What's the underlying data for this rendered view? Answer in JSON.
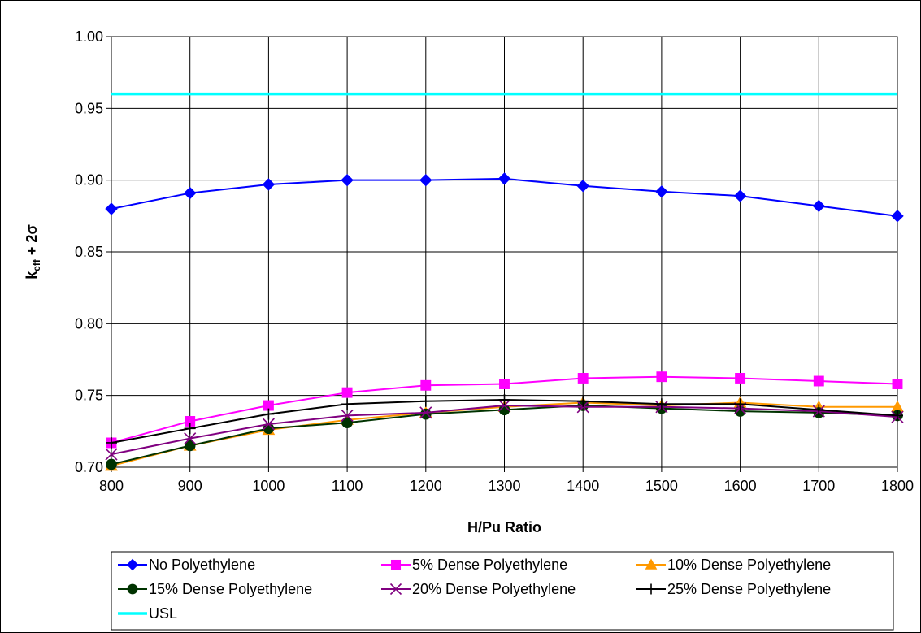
{
  "chart_data": {
    "type": "line",
    "title": "",
    "xlabel": "H/Pu Ratio",
    "ylabel": {
      "main": "k",
      "sub": "eff",
      "suffix": " + 2σ"
    },
    "xlim": [
      800,
      1800
    ],
    "ylim": [
      0.7,
      1.0
    ],
    "x_ticks": [
      800,
      900,
      1000,
      1100,
      1200,
      1300,
      1400,
      1500,
      1600,
      1700,
      1800
    ],
    "y_ticks": [
      0.7,
      0.75,
      0.8,
      0.85,
      0.9,
      0.95,
      1.0
    ],
    "grid": true,
    "legend_position": "bottom",
    "x": [
      800,
      900,
      1000,
      1100,
      1200,
      1300,
      1400,
      1500,
      1600,
      1700,
      1800
    ],
    "series": [
      {
        "name": "No Polyethylene",
        "color": "#0000FF",
        "marker": "diamond",
        "values": [
          0.88,
          0.891,
          0.897,
          0.9,
          0.9,
          0.901,
          0.896,
          0.892,
          0.889,
          0.882,
          0.875
        ]
      },
      {
        "name": "5% Dense Polyethylene",
        "color": "#FF00FF",
        "marker": "square",
        "values": [
          0.717,
          0.732,
          0.743,
          0.752,
          0.757,
          0.758,
          0.762,
          0.763,
          0.762,
          0.76,
          0.758
        ]
      },
      {
        "name": "10% Dense Polyethylene",
        "color": "#FF9900",
        "marker": "triangle",
        "values": [
          0.701,
          0.715,
          0.726,
          0.733,
          0.738,
          0.742,
          0.745,
          0.743,
          0.745,
          0.742,
          0.742
        ]
      },
      {
        "name": "15% Dense Polyethylene",
        "color": "#003300",
        "marker": "circle",
        "values": [
          0.702,
          0.715,
          0.727,
          0.731,
          0.737,
          0.74,
          0.743,
          0.741,
          0.739,
          0.738,
          0.736
        ]
      },
      {
        "name": "20% Dense Polyethylene",
        "color": "#800080",
        "marker": "x",
        "values": [
          0.709,
          0.72,
          0.73,
          0.736,
          0.738,
          0.743,
          0.742,
          0.742,
          0.741,
          0.739,
          0.735
        ]
      },
      {
        "name": "25% Dense Polyethylene",
        "color": "#000000",
        "marker": "plus",
        "values": [
          0.717,
          0.727,
          0.737,
          0.744,
          0.746,
          0.747,
          0.746,
          0.744,
          0.744,
          0.74,
          0.736
        ]
      },
      {
        "name": "USL",
        "color": "#00FFFF",
        "marker": "none",
        "values": [
          0.96,
          0.96,
          0.96,
          0.96,
          0.96,
          0.96,
          0.96,
          0.96,
          0.96,
          0.96,
          0.96
        ]
      }
    ]
  }
}
